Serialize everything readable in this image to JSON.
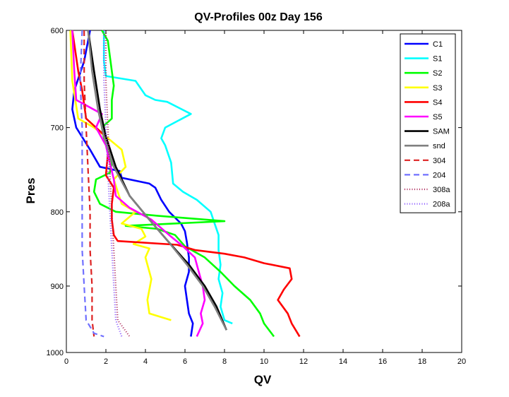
{
  "chart_data": {
    "type": "line",
    "title": "QV-Profiles 00z Day 156",
    "xlabel": "QV",
    "ylabel": "Pres",
    "xlim": [
      0,
      20
    ],
    "xticks": [
      "0",
      "2",
      "4",
      "6",
      "8",
      "10",
      "12",
      "14",
      "16",
      "18",
      "20"
    ],
    "yticks": [
      {
        "value": 600,
        "label": "600"
      },
      {
        "value": 700,
        "label": "700"
      },
      {
        "value": 800,
        "label": "800"
      },
      {
        "value": 900,
        "label": "900"
      },
      {
        "value": 1000,
        "label": "1000"
      }
    ],
    "y_axis": "pressure-log-reversed",
    "ylim": [
      600,
      1000
    ],
    "grid": false,
    "legend_position": "top-right",
    "series": [
      {
        "name": "C1",
        "color": "#0000ff",
        "style": "solid",
        "points": [
          [
            1.2,
            600
          ],
          [
            0.9,
            630
          ],
          [
            0.4,
            660
          ],
          [
            0.3,
            680
          ],
          [
            0.5,
            700
          ],
          [
            1.2,
            725
          ],
          [
            1.7,
            745
          ],
          [
            2.7,
            750
          ],
          [
            2.8,
            758
          ],
          [
            4.2,
            765
          ],
          [
            4.5,
            770
          ],
          [
            4.8,
            785
          ],
          [
            5.2,
            800
          ],
          [
            5.8,
            815
          ],
          [
            6.0,
            825
          ],
          [
            6.1,
            840
          ],
          [
            6.2,
            860
          ],
          [
            6.2,
            880
          ],
          [
            6.0,
            900
          ],
          [
            6.1,
            920
          ],
          [
            6.2,
            940
          ],
          [
            6.4,
            955
          ],
          [
            6.3,
            975
          ]
        ]
      },
      {
        "name": "S1",
        "color": "#00ffff",
        "style": "solid",
        "points": [
          [
            1.9,
            600
          ],
          [
            1.9,
            630
          ],
          [
            2.0,
            645
          ],
          [
            3.5,
            650
          ],
          [
            4.0,
            665
          ],
          [
            4.5,
            670
          ],
          [
            5.1,
            672
          ],
          [
            6.3,
            685
          ],
          [
            5.0,
            700
          ],
          [
            4.8,
            712
          ],
          [
            5.0,
            720
          ],
          [
            5.3,
            740
          ],
          [
            5.4,
            765
          ],
          [
            5.9,
            775
          ],
          [
            6.6,
            785
          ],
          [
            7.3,
            800
          ],
          [
            7.5,
            815
          ],
          [
            7.7,
            830
          ],
          [
            7.7,
            850
          ],
          [
            7.8,
            870
          ],
          [
            7.7,
            890
          ],
          [
            7.9,
            910
          ],
          [
            7.8,
            930
          ],
          [
            8.0,
            950
          ],
          [
            8.4,
            955
          ]
        ]
      },
      {
        "name": "S2",
        "color": "#00ff00",
        "style": "solid",
        "points": [
          [
            1.8,
            600
          ],
          [
            2.1,
            610
          ],
          [
            2.2,
            625
          ],
          [
            2.3,
            640
          ],
          [
            2.4,
            655
          ],
          [
            2.3,
            670
          ],
          [
            2.3,
            690
          ],
          [
            1.8,
            700
          ],
          [
            1.9,
            712
          ],
          [
            2.1,
            725
          ],
          [
            2.3,
            740
          ],
          [
            2.2,
            752
          ],
          [
            1.5,
            760
          ],
          [
            1.4,
            775
          ],
          [
            1.7,
            790
          ],
          [
            2.5,
            800
          ],
          [
            4.6,
            805
          ],
          [
            8.0,
            812
          ],
          [
            3.0,
            818
          ],
          [
            4.6,
            822
          ],
          [
            5.5,
            830
          ],
          [
            6.0,
            845
          ],
          [
            7.0,
            860
          ],
          [
            7.8,
            880
          ],
          [
            8.5,
            900
          ],
          [
            9.3,
            920
          ],
          [
            9.8,
            940
          ],
          [
            10.0,
            955
          ],
          [
            10.5,
            975
          ]
        ]
      },
      {
        "name": "S3",
        "color": "#ffff00",
        "style": "solid",
        "points": [
          [
            0.2,
            600
          ],
          [
            0.3,
            650
          ],
          [
            0.6,
            690
          ],
          [
            1.4,
            700
          ],
          [
            2.0,
            710
          ],
          [
            2.8,
            725
          ],
          [
            3.0,
            745
          ],
          [
            2.4,
            760
          ],
          [
            2.6,
            775
          ],
          [
            2.8,
            790
          ],
          [
            3.5,
            800
          ],
          [
            2.8,
            815
          ],
          [
            3.8,
            822
          ],
          [
            4.0,
            832
          ],
          [
            3.4,
            842
          ],
          [
            4.2,
            848
          ],
          [
            4.0,
            860
          ],
          [
            4.3,
            890
          ],
          [
            4.1,
            920
          ],
          [
            4.2,
            940
          ],
          [
            5.3,
            950
          ]
        ]
      },
      {
        "name": "S4",
        "color": "#ff0000",
        "style": "solid",
        "points": [
          [
            0.3,
            600
          ],
          [
            0.6,
            640
          ],
          [
            0.8,
            660
          ],
          [
            1.0,
            690
          ],
          [
            2.0,
            710
          ],
          [
            2.1,
            730
          ],
          [
            2.0,
            755
          ],
          [
            2.4,
            770
          ],
          [
            2.3,
            790
          ],
          [
            2.3,
            810
          ],
          [
            2.4,
            830
          ],
          [
            2.6,
            838
          ],
          [
            5.6,
            843
          ],
          [
            6.5,
            850
          ],
          [
            8.0,
            855
          ],
          [
            9.0,
            860
          ],
          [
            10.0,
            868
          ],
          [
            11.3,
            875
          ],
          [
            11.4,
            890
          ],
          [
            11.0,
            905
          ],
          [
            10.7,
            920
          ],
          [
            11.2,
            940
          ],
          [
            11.4,
            955
          ],
          [
            11.8,
            975
          ]
        ]
      },
      {
        "name": "S5",
        "color": "#ff00ff",
        "style": "solid",
        "points": [
          [
            0.3,
            600
          ],
          [
            0.4,
            640
          ],
          [
            0.5,
            670
          ],
          [
            1.8,
            685
          ],
          [
            1.5,
            700
          ],
          [
            2.0,
            720
          ],
          [
            2.2,
            740
          ],
          [
            2.4,
            760
          ],
          [
            2.5,
            780
          ],
          [
            3.2,
            795
          ],
          [
            4.3,
            810
          ],
          [
            5.2,
            830
          ],
          [
            5.9,
            845
          ],
          [
            6.5,
            860
          ],
          [
            6.7,
            880
          ],
          [
            6.9,
            900
          ],
          [
            7.0,
            920
          ],
          [
            6.8,
            940
          ],
          [
            6.9,
            955
          ],
          [
            6.6,
            975
          ]
        ]
      },
      {
        "name": "SAM",
        "color": "#000000",
        "style": "solid",
        "points": [
          [
            1.1,
            600
          ],
          [
            1.4,
            640
          ],
          [
            1.7,
            680
          ],
          [
            2.0,
            710
          ],
          [
            2.5,
            745
          ],
          [
            3.2,
            780
          ],
          [
            4.2,
            810
          ],
          [
            5.2,
            840
          ],
          [
            6.2,
            870
          ],
          [
            7.0,
            900
          ],
          [
            7.6,
            930
          ],
          [
            8.1,
            965
          ]
        ]
      },
      {
        "name": "snd",
        "color": "#808080",
        "style": "solid",
        "points": [
          [
            1.1,
            600
          ],
          [
            1.3,
            640
          ],
          [
            1.6,
            680
          ],
          [
            1.9,
            710
          ],
          [
            2.4,
            745
          ],
          [
            3.2,
            780
          ],
          [
            4.2,
            810
          ],
          [
            5.2,
            840
          ],
          [
            6.1,
            870
          ],
          [
            6.9,
            900
          ],
          [
            7.5,
            930
          ],
          [
            8.1,
            965
          ]
        ]
      },
      {
        "name": "304",
        "color": "#dd2222",
        "style": "dashed",
        "points": [
          [
            0.9,
            600
          ],
          [
            0.9,
            650
          ],
          [
            1.0,
            700
          ],
          [
            1.1,
            750
          ],
          [
            1.2,
            800
          ],
          [
            1.2,
            850
          ],
          [
            1.3,
            900
          ],
          [
            1.3,
            950
          ],
          [
            1.4,
            975
          ]
        ]
      },
      {
        "name": "204",
        "color": "#7070ff",
        "style": "dashed",
        "points": [
          [
            0.8,
            600
          ],
          [
            0.7,
            650
          ],
          [
            0.8,
            700
          ],
          [
            0.8,
            750
          ],
          [
            0.8,
            800
          ],
          [
            0.8,
            850
          ],
          [
            0.9,
            900
          ],
          [
            1.0,
            950
          ],
          [
            1.4,
            970
          ],
          [
            1.9,
            975
          ]
        ]
      },
      {
        "name": "308a",
        "color": "#aa2255",
        "style": "dotted",
        "points": [
          [
            2.0,
            600
          ],
          [
            2.0,
            650
          ],
          [
            2.1,
            700
          ],
          [
            2.2,
            750
          ],
          [
            2.3,
            800
          ],
          [
            2.4,
            850
          ],
          [
            2.5,
            900
          ],
          [
            2.6,
            950
          ],
          [
            3.2,
            975
          ]
        ]
      },
      {
        "name": "208a",
        "color": "#8855ff",
        "style": "dotted",
        "points": [
          [
            1.9,
            600
          ],
          [
            1.9,
            650
          ],
          [
            2.0,
            700
          ],
          [
            2.1,
            750
          ],
          [
            2.2,
            800
          ],
          [
            2.3,
            850
          ],
          [
            2.4,
            900
          ],
          [
            2.5,
            950
          ],
          [
            2.8,
            975
          ]
        ]
      }
    ]
  }
}
